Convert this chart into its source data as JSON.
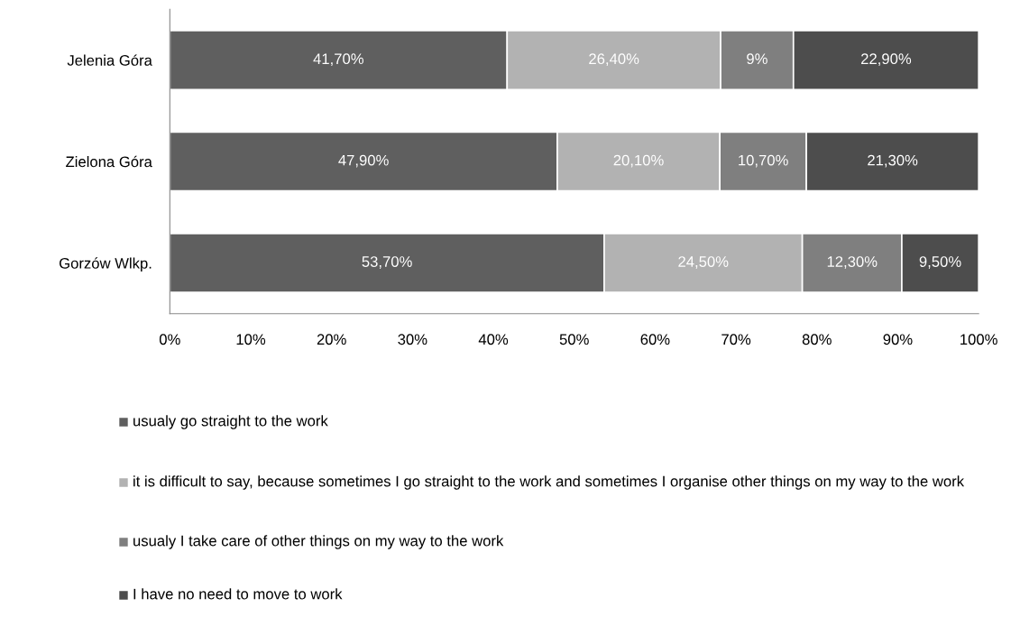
{
  "chart_data": {
    "type": "bar",
    "orientation": "horizontal",
    "stacked": true,
    "categories": [
      "Jelenia Góra",
      "Zielona Góra",
      "Gorzów Wlkp."
    ],
    "series": [
      {
        "name": "usualy go straight to the work",
        "color": "#5f5f5f",
        "values": [
          41.7,
          47.9,
          53.7
        ],
        "value_labels": [
          "41,70%",
          "47,90%",
          "53,70%"
        ]
      },
      {
        "name": "it is difficult to say, because sometimes I go straight to the work and sometimes I organise other things on my way to the work",
        "color": "#b2b2b2",
        "values": [
          26.4,
          20.1,
          24.5
        ],
        "value_labels": [
          "26,40%",
          "20,10%",
          "24,50%"
        ]
      },
      {
        "name": "usualy I take care of other things on my way to the work",
        "color": "#7f7f7f",
        "values": [
          9,
          10.7,
          12.3
        ],
        "value_labels": [
          "9%",
          "10,70%",
          "12,30%"
        ]
      },
      {
        "name": "I have no need to move to work",
        "color": "#4d4d4d",
        "values": [
          22.9,
          21.3,
          9.5
        ],
        "value_labels": [
          "22,90%",
          "21,30%",
          "9,50%"
        ]
      }
    ],
    "xlim": [
      0,
      100
    ],
    "xticks": [
      {
        "value": 0,
        "label": "0%"
      },
      {
        "value": 10,
        "label": "10%"
      },
      {
        "value": 20,
        "label": "20%"
      },
      {
        "value": 30,
        "label": "30%"
      },
      {
        "value": 40,
        "label": "40%"
      },
      {
        "value": 50,
        "label": "50%"
      },
      {
        "value": 60,
        "label": "60%"
      },
      {
        "value": 70,
        "label": "70%"
      },
      {
        "value": 80,
        "label": "80%"
      },
      {
        "value": 90,
        "label": "90%"
      },
      {
        "value": 100,
        "label": "100%"
      }
    ],
    "grid": false,
    "legend": "bottom"
  }
}
